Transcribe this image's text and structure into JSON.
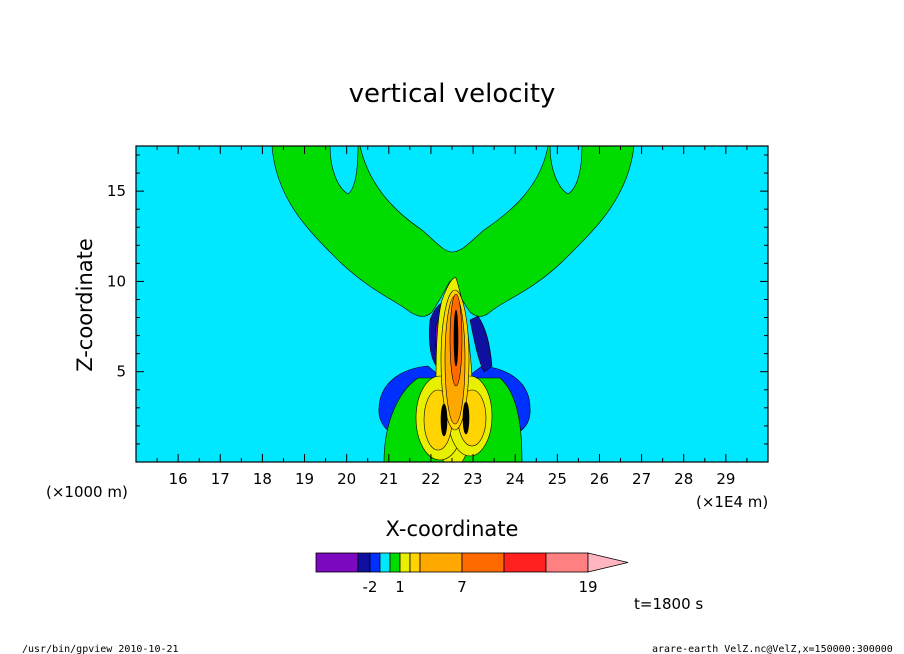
{
  "chart_data": {
    "type": "contour",
    "title": "vertical velocity",
    "xlabel": "X-coordinate",
    "ylabel": "Z-coordinate",
    "x_scale_label": "(×1E4 m)",
    "y_scale_label": "(×1000 m)",
    "x_ticks": [
      16,
      17,
      18,
      19,
      20,
      21,
      22,
      23,
      24,
      25,
      26,
      27,
      28,
      29
    ],
    "y_ticks": [
      5,
      10,
      15
    ],
    "xlim": [
      15,
      30
    ],
    "ylim": [
      0,
      17.5
    ],
    "time_label": "t=1800 s",
    "colorbar": {
      "tick_labels": [
        "-2",
        "1",
        "7",
        "19"
      ],
      "colors": [
        "#7c08bf",
        "#1010a0",
        "#0030ff",
        "#00e8ff",
        "#00dc00",
        "#e8f000",
        "#ffd400",
        "#ffa800",
        "#ff6a00",
        "#ff2020",
        "#ff8080",
        "#ffb6c1"
      ]
    },
    "colors": {
      "background": "#00e8ff",
      "green": "#00dc00",
      "blue": "#0030ff",
      "darkblue": "#1010a0",
      "purple": "#7c08bf",
      "yellow": "#e8f000",
      "gold": "#ffd400",
      "orange": "#ffa800",
      "darkorange": "#ff6a00",
      "black": "#000000"
    }
  },
  "footer": {
    "left": "/usr/bin/gpview   2010-10-21",
    "right": "arare-earth_VelZ.nc@VelZ,x=150000:300000"
  }
}
